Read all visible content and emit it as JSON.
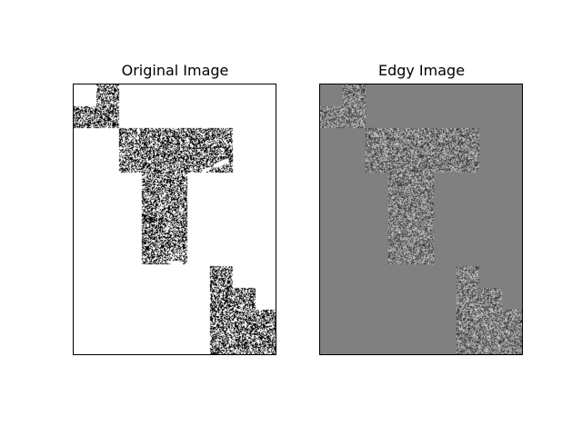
{
  "figure": {
    "panels": [
      {
        "id": "original",
        "title": "Original Image",
        "background": "#ffffff",
        "noise_dark": "#000000",
        "noise_light": "#ffffff"
      },
      {
        "id": "edgy",
        "title": "Edgy Image",
        "background": "#808080",
        "noise_dark": "#2a2a2a",
        "noise_light": "#d8d8d8"
      }
    ]
  }
}
